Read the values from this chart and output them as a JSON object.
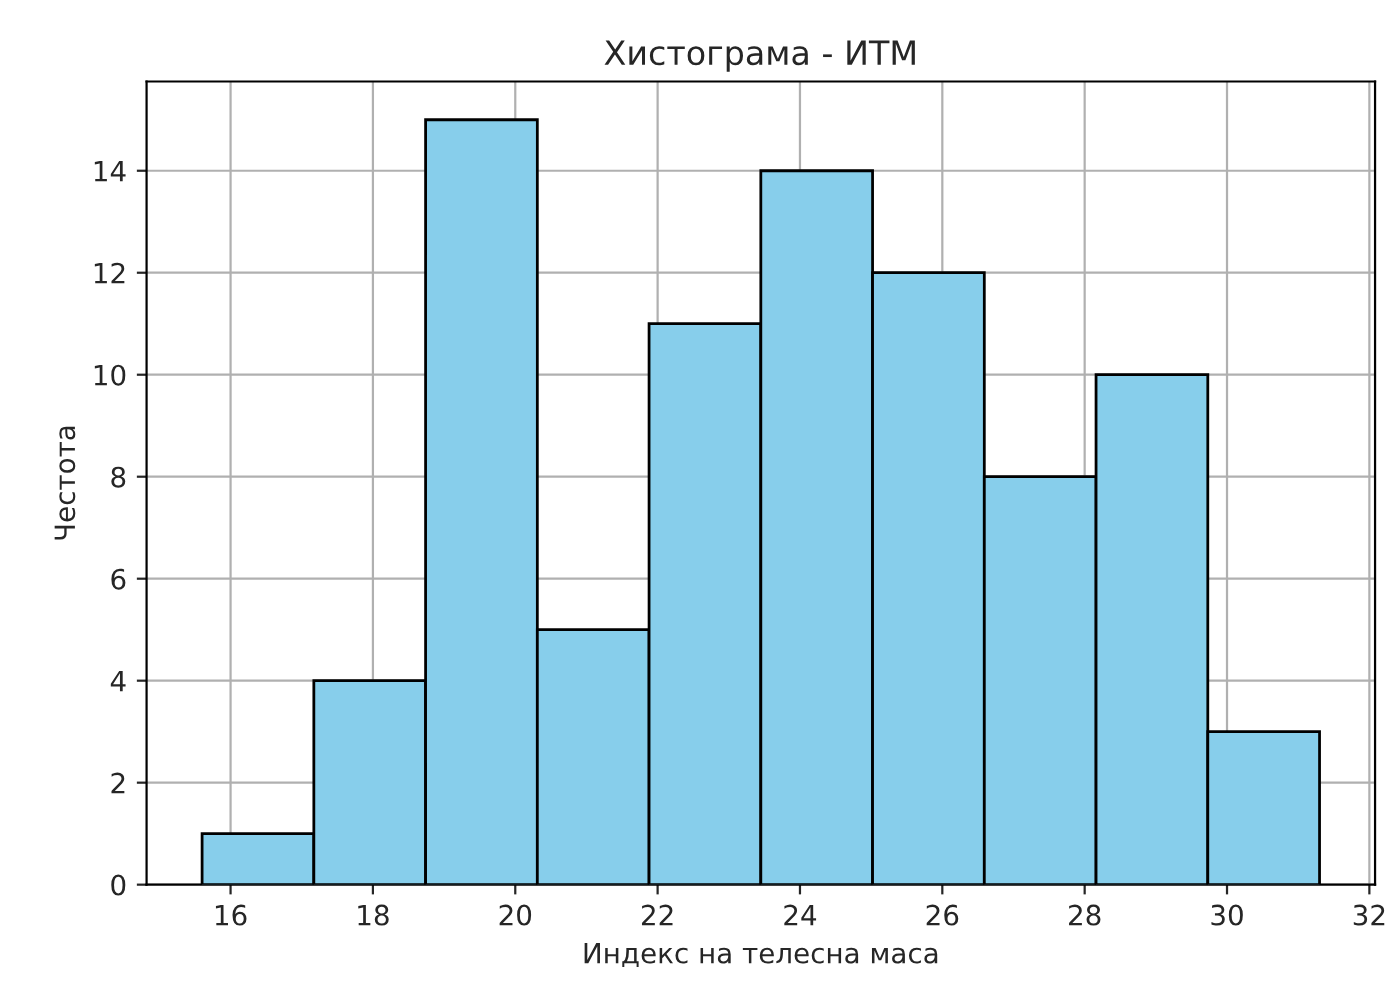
{
  "chart_data": {
    "type": "histogram",
    "title": "Хистограма - ИТМ",
    "xlabel": "Индекс на телесна маса",
    "ylabel": "Честота",
    "bins": [
      15.6,
      17.17,
      18.74,
      20.31,
      21.88,
      23.45,
      25.02,
      26.59,
      28.16,
      29.73,
      31.3
    ],
    "values": [
      1,
      4,
      15,
      5,
      11,
      14,
      12,
      8,
      10,
      3
    ],
    "color": "#87ceeb",
    "xlim": [
      14.82,
      32.08
    ],
    "xticks": [
      16,
      18,
      20,
      22,
      24,
      26,
      28,
      30,
      32
    ],
    "ylim": [
      0,
      15.75
    ],
    "yticks": [
      0,
      2,
      4,
      6,
      8,
      10,
      12,
      14
    ],
    "grid": true
  }
}
